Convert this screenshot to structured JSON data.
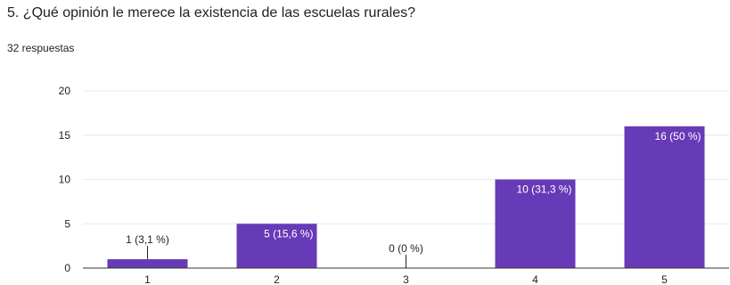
{
  "header": {
    "question": "5. ¿Qué opinión le merece la existencia de las escuelas rurales?",
    "responses": "32 respuestas"
  },
  "colors": {
    "bar": "#673ab7",
    "grid": "#e8e8e8",
    "axis": "#333333",
    "label_inside": "#ffffff",
    "label_outside": "#222222"
  },
  "chart_data": {
    "type": "bar",
    "title": "",
    "xlabel": "",
    "ylabel": "",
    "categories": [
      "1",
      "2",
      "3",
      "4",
      "5"
    ],
    "values": [
      1,
      5,
      0,
      10,
      16
    ],
    "labels": [
      "1 (3,1 %)",
      "5 (15,6 %)",
      "0 (0 %)",
      "10 (31,3 %)",
      "16 (50 %)"
    ],
    "yticks": [
      "0",
      "5",
      "10",
      "15",
      "20"
    ],
    "ylim": [
      0,
      20
    ],
    "grid": true,
    "legend": "none"
  }
}
